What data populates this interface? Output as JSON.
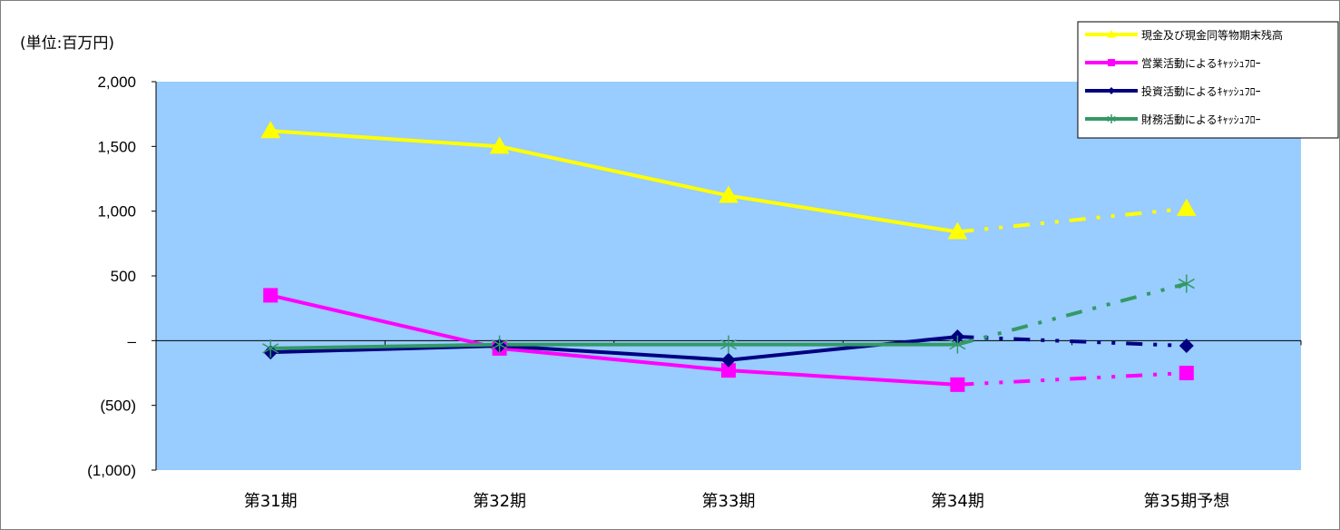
{
  "chart_data": {
    "type": "line",
    "unit_label": "(単位:百万円)",
    "categories": [
      "第31期",
      "第32期",
      "第33期",
      "第34期",
      "第35期予想"
    ],
    "forecast_from_index": 3,
    "ylim": [
      -1000,
      2000
    ],
    "yticks": [
      {
        "value": 2000,
        "label": "2,000"
      },
      {
        "value": 1500,
        "label": "1,500"
      },
      {
        "value": 1000,
        "label": "1,000"
      },
      {
        "value": 500,
        "label": "500"
      },
      {
        "value": 0,
        "label": "–"
      },
      {
        "value": -500,
        "label": "(500)"
      },
      {
        "value": -1000,
        "label": "(1,000)"
      }
    ],
    "plot_background": "#99ccff",
    "grid": false,
    "legend_position": "top-right",
    "series": [
      {
        "name": "現金及び現金同等物期末残高",
        "color": "#ffff00",
        "marker": "triangle",
        "values": [
          1620,
          1500,
          1120,
          840,
          1020
        ]
      },
      {
        "name": "営業活動によるｷｬｯｼｭﾌﾛｰ",
        "color": "#ff00ff",
        "marker": "square",
        "values": [
          350,
          -60,
          -230,
          -340,
          -250
        ]
      },
      {
        "name": "投資活動によるｷｬｯｼｭﾌﾛｰ",
        "color": "#000080",
        "marker": "diamond",
        "values": [
          -90,
          -40,
          -150,
          30,
          -40
        ]
      },
      {
        "name": "財務活動によるｷｬｯｼｭﾌﾛｰ",
        "color": "#339966",
        "marker": "star",
        "values": [
          -60,
          -30,
          -30,
          -30,
          440
        ]
      }
    ]
  }
}
